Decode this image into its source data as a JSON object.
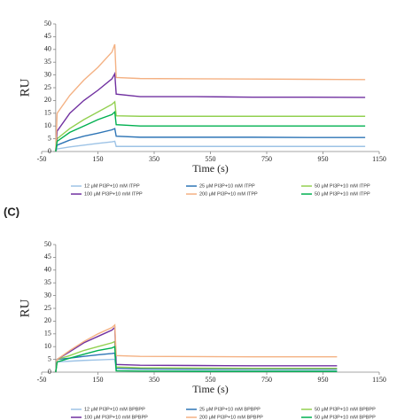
{
  "chart_data": [
    {
      "type": "line",
      "x_label": "Time (s)",
      "y_label": "RU",
      "xlim": [
        -50,
        1150
      ],
      "xticks": [
        -50,
        150,
        350,
        550,
        750,
        950,
        1150
      ],
      "ylim": [
        0,
        50
      ],
      "yticks": [
        0,
        5,
        10,
        15,
        20,
        25,
        30,
        35,
        40,
        45,
        50
      ],
      "x": [
        0,
        5,
        50,
        100,
        150,
        200,
        210,
        215,
        300,
        500,
        700,
        900,
        1100
      ],
      "series": [
        {
          "name": "12 μM PI3P+10 mM ITPP",
          "color": "#9dc3e6",
          "values": [
            0,
            1,
            1.8,
            2.5,
            3.2,
            3.8,
            4,
            2,
            2,
            2,
            2,
            2,
            2
          ]
        },
        {
          "name": "25 μM PI3P+10 mM ITPP",
          "color": "#2e75b6",
          "values": [
            0,
            2.5,
            4.5,
            6,
            7.2,
            8.5,
            9,
            6,
            5.6,
            5.6,
            5.6,
            5.5,
            5.5
          ]
        },
        {
          "name": "50 μM PI3P+10 mM ITPP",
          "color": "#92d050",
          "values": [
            0,
            5,
            9,
            12.5,
            15.5,
            18.5,
            19.5,
            14,
            13.8,
            13.8,
            13.8,
            13.8,
            13.8
          ]
        },
        {
          "name": "100 μM PI3P+10 mM ITPP",
          "color": "#7030a0",
          "values": [
            0,
            8,
            15,
            20,
            24,
            28.5,
            30.5,
            22.5,
            21.5,
            21.5,
            21.3,
            21.3,
            21.2
          ]
        },
        {
          "name": "200 μM PI3P+10 mM ITPP",
          "color": "#f4b183",
          "values": [
            0,
            15,
            22,
            28,
            33,
            39,
            42,
            29,
            28.6,
            28.5,
            28.4,
            28.3,
            28.2
          ]
        },
        {
          "name": "50 μM  PI3P+10 mM ITPP",
          "color": "#00b050",
          "values": [
            0,
            4,
            7.5,
            10,
            12.5,
            14.5,
            15.5,
            10.5,
            10,
            10,
            10,
            10,
            10
          ]
        }
      ]
    },
    {
      "type": "line",
      "panel_label": "(C)",
      "x_label": "Time (s)",
      "y_label": "RU",
      "xlim": [
        -50,
        1150
      ],
      "xticks": [
        -50,
        150,
        350,
        550,
        750,
        950,
        1150
      ],
      "ylim": [
        0,
        50
      ],
      "yticks": [
        0,
        5,
        10,
        15,
        20,
        25,
        30,
        35,
        40,
        45,
        50
      ],
      "x": [
        0,
        5,
        50,
        100,
        150,
        200,
        210,
        215,
        300,
        500,
        700,
        900,
        1000
      ],
      "series": [
        {
          "name": "12 μM PI3P+10 mM BPBPP",
          "color": "#9dc3e6",
          "values": [
            0,
            4,
            4.3,
            4.6,
            4.8,
            5,
            5,
            0.6,
            0.5,
            0.5,
            0.5,
            0.5,
            0.5
          ]
        },
        {
          "name": "25 μM PI3P+10 mM BPBPP",
          "color": "#2e75b6",
          "values": [
            0,
            5,
            5.5,
            6.2,
            6.8,
            7.3,
            7.5,
            1.5,
            1.3,
            1.2,
            1.2,
            1.2,
            1.2
          ]
        },
        {
          "name": "50 μM PI3P+10 mM BPBPP",
          "color": "#92d050",
          "values": [
            0,
            5,
            6.5,
            8.5,
            10,
            11.5,
            12,
            2,
            1.7,
            1.6,
            1.5,
            1.5,
            1.5
          ]
        },
        {
          "name": "100 μM PI3P+10 mM BPBPP",
          "color": "#7030a0",
          "values": [
            0,
            5,
            8,
            11.5,
            14,
            16.5,
            17.5,
            3,
            2.7,
            2.6,
            2.5,
            2.5,
            2.5
          ]
        },
        {
          "name": "200 μM PI3P+10 mM BPBPP",
          "color": "#f4b183",
          "values": [
            0,
            5,
            8.5,
            12,
            15,
            17.5,
            18.5,
            6.5,
            6.2,
            6.1,
            6,
            6,
            6
          ]
        },
        {
          "name": "50 μM PI3P+10 mM BPBPP",
          "color": "#00b050",
          "values": [
            0,
            4,
            5.5,
            7,
            8.5,
            9.5,
            10,
            0.5,
            0.4,
            0.3,
            0.3,
            0.3,
            0.3
          ]
        }
      ]
    }
  ]
}
